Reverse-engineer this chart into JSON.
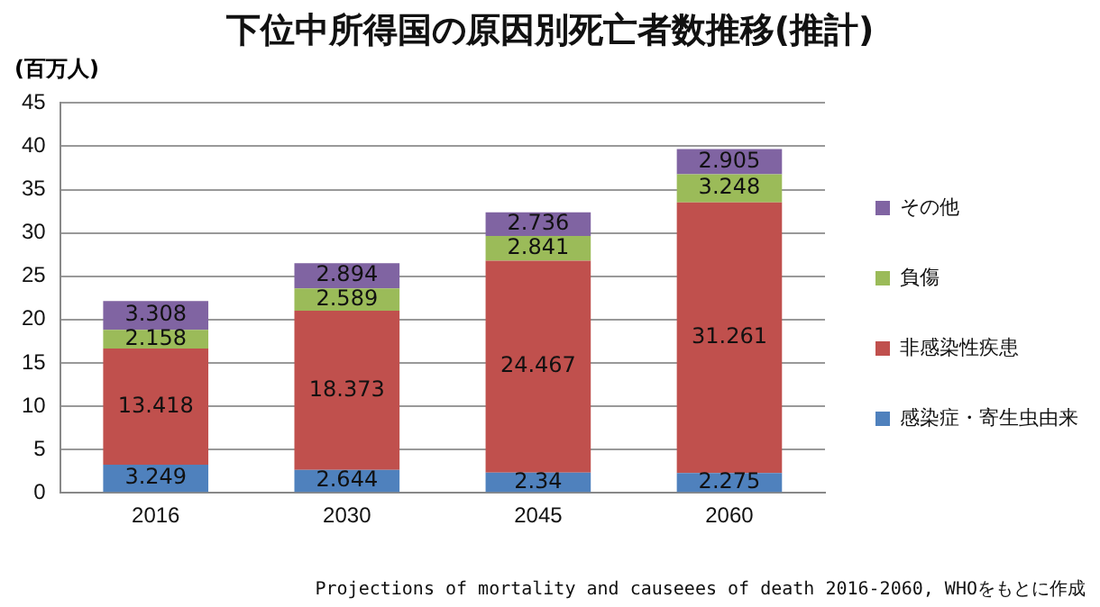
{
  "chart_data": {
    "type": "bar",
    "title": "下位中所得国の原因別死亡者数推移(推計)",
    "ylabel": "(百万人)",
    "categories": [
      "2016",
      "2030",
      "2045",
      "2060"
    ],
    "series": [
      {
        "name": "感染症・寄生虫由来",
        "color": "#4f81bd",
        "values": [
          3.249,
          2.644,
          2.34,
          2.275
        ]
      },
      {
        "name": "非感染性疾患",
        "color": "#c0504d",
        "values": [
          13.418,
          18.373,
          24.467,
          31.261
        ]
      },
      {
        "name": "負傷",
        "color": "#9bbb59",
        "values": [
          2.158,
          2.589,
          2.841,
          3.248
        ]
      },
      {
        "name": "その他",
        "color": "#8064a2",
        "values": [
          3.308,
          2.894,
          2.736,
          2.905
        ]
      }
    ],
    "stacked": true,
    "ylim": [
      0,
      45
    ],
    "yticks": [
      0,
      5,
      10,
      15,
      20,
      25,
      30,
      35,
      40,
      45
    ],
    "grid": "y",
    "legend": "right",
    "data_labels": true,
    "annotations": [
      "Projections of mortality and causeees of death 2016-2060, WHOをもとに作成"
    ]
  }
}
